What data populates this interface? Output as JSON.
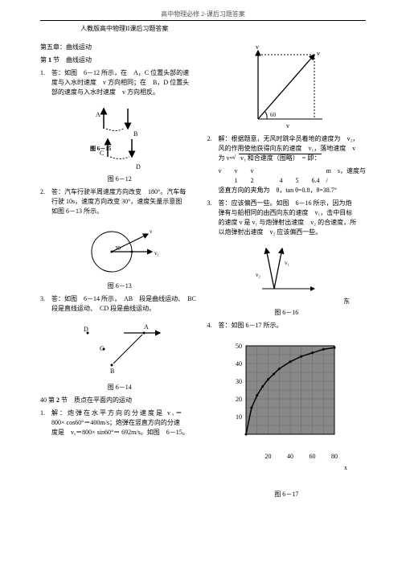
{
  "header_top": "高中物理必修 2-课后习题答案",
  "header_sub": "人教版高中物理II课后习题答案",
  "left": {
    "chapter_title": "第五章：曲线运动",
    "section1_title_a": "第",
    "section1_num": "1",
    "section1_title_b": "节　曲线运动",
    "q1_num": "1.",
    "q1_text_1": "答：如图　6－12 所示，在　A，C 位置头部的速",
    "q1_text_2": "度与入水时速度　v 方向相同；在　B，D 位置头",
    "q1_text_3": "部的速度与入水时速度　v 方向相反。",
    "fig6_12_label_A": "A",
    "fig6_12_label_B": "B",
    "fig6_12_label_C": "C",
    "fig6_12_label_D": "D",
    "fig6_12_label_mid": "图 6－15",
    "fig6_12_caption": "图 6－12",
    "q2_num": "2.",
    "q2_text_1": "答：汽车行驶半周速度方向改变　180°。汽车每",
    "q2_text_2": "行驶 10s，速度方向改变 30°，速度矢量示意图",
    "q2_text_3": "如图 6－13 所示。",
    "fig6_13_deg": "30",
    "fig6_13_v1": "v",
    "fig6_13_v2": "v₁",
    "fig6_13_caption": "图 6－13",
    "q3_num": "3.",
    "q3_text_1": "答：如图　6－14 所示，　AB　段是曲线运动、　BC",
    "q3_text_2": "段是直线运动、　CD 段是曲线运动。",
    "fig6_14_A": "A",
    "fig6_14_B": "B",
    "fig6_14_C": "C",
    "fig6_14_D": "D",
    "fig6_14_caption": "图 6－14",
    "sec2_prefix": "40 第",
    "sec2_num": "2",
    "sec2_suffix": "节　质点在平面内的运动",
    "sec2_q1_num": "1.",
    "sec2_q1_1": "解：炮弹在水平方向的分速度是 vₓ＝",
    "sec2_q1_2": "800× cos60°＝400m/s；炮弹在竖直方向的分速",
    "sec2_q1_3": "度是　vᵧ＝800× sin60°＝ 692m/s。如图　6－15。"
  },
  "right": {
    "fig_top_v1": "v",
    "fig_top_v2": "v",
    "fig_top_60": "60",
    "fig_top_vx": "v",
    "q2_num": "2.",
    "q2_1": "解：根据题意，无风时跳伞员着地的速度为　v₂，",
    "q2_2": "风的作用使他获得向东的速度　v₁，落地速度　v",
    "q2_3_a": "为 v=",
    "q2_3_b": "v₁ 和合速度（图略）　= 即：",
    "q2_line_v": "v　　v　　v",
    "q2_line_ms": "m　s，速度与",
    "q2_line_nums": "1　　2　　　　4　　5　　6.4　/",
    "q2_4": "竖直方向的夹角为　θ，tan θ=0.8，θ=38.7°",
    "q3_num": "3.",
    "q3_1": "答：应该偏西一些。如图　6－16 所示，因为炮",
    "q3_2": "弹有与船相同的由西向东的速度　v₁，击中目标",
    "q3_3": "的速度 v 是 v₁ 与炮弹射出速度　v₂ 的合速度，所",
    "q3_4": "以炮弹射出速度　v₂ 应该偏西一些。",
    "fig6_16_v1": "v₁",
    "fig6_16_v2": "v₂",
    "fig6_16_east": "东",
    "fig6_16_caption": "图 6－16",
    "q4_num": "4.",
    "q4_text": "答：如图 6－17 所示。",
    "chart": {
      "x_ticks": [
        "20",
        "40",
        "60",
        "80"
      ],
      "y_ticks": [
        "10",
        "20",
        "30",
        "40",
        "50"
      ],
      "x_label": "x",
      "points_x": [
        0,
        5,
        10,
        15,
        20,
        25,
        30,
        40,
        50,
        60,
        70,
        80
      ],
      "points_y": [
        0,
        15,
        22,
        27,
        31,
        34,
        37,
        41,
        44,
        46,
        48,
        49
      ],
      "bgcolor": "#888888",
      "gridcolor": "#666666",
      "linecolor": "#000000"
    },
    "fig6_17_caption": "图 6－17"
  }
}
